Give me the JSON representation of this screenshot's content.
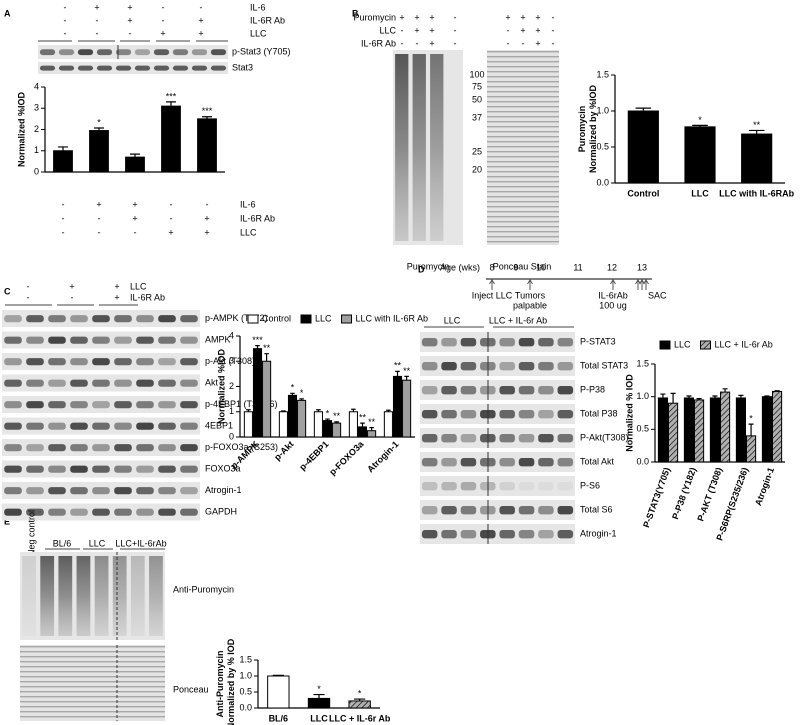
{
  "chart_data": [
    {
      "type": "bar",
      "y_label": "Normalized %IOD",
      "ylim": [
        0,
        4
      ],
      "yticks": [
        0,
        1,
        2,
        3,
        4
      ],
      "series": [
        {
          "color": "#000000",
          "values": [
            1.0,
            1.95,
            0.7,
            3.1,
            2.5
          ],
          "errors": [
            0.18,
            0.12,
            0.14,
            0.2,
            0.1
          ],
          "significance": [
            null,
            "*",
            null,
            "***",
            "***"
          ]
        }
      ]
    },
    {
      "type": "bar",
      "y_label": [
        "Puromycin",
        "Normalized by %IOD"
      ],
      "categories": [
        "Control",
        "LLC",
        "LLC with IL-6RAb"
      ],
      "ylim": [
        0,
        1.5
      ],
      "yticks": [
        {
          "value": 0,
          "label": "0.0"
        },
        0.5,
        {
          "value": 1,
          "label": "1.0"
        },
        1.5
      ],
      "series": [
        {
          "color": "#000000",
          "values": [
            1.0,
            0.78,
            0.68
          ],
          "errors": [
            0.04,
            0.02,
            0.05
          ],
          "significance": [
            null,
            "*",
            "**"
          ]
        }
      ]
    },
    {
      "type": "bar",
      "y_label": "Normalized %IOD",
      "categories": [
        "p-AMPK",
        "p-Akt",
        "p-4EBP1",
        "p-FOXO3a",
        "Atrogin-1"
      ],
      "ylim": [
        0,
        4
      ],
      "yticks": [
        0,
        1,
        2,
        3,
        4
      ],
      "series": [
        {
          "name": "Control",
          "color": "#ffffff",
          "values": [
            1.0,
            1.0,
            1.0,
            1.0,
            1.0
          ],
          "errors": [
            0.08,
            0.03,
            0.08,
            0.1,
            0.06
          ],
          "significance": [
            null,
            null,
            null,
            null,
            null
          ]
        },
        {
          "name": "LLC",
          "color": "#000000",
          "values": [
            3.5,
            1.65,
            0.65,
            0.4,
            2.4
          ],
          "errors": [
            0.12,
            0.08,
            0.06,
            0.15,
            0.2
          ],
          "significance": [
            "***",
            "*",
            "*",
            "**",
            "**"
          ]
        },
        {
          "name": "LLC with IL-6R Ab",
          "color": "#a0a0a0",
          "values": [
            3.0,
            1.45,
            0.55,
            0.25,
            2.25
          ],
          "errors": [
            0.3,
            0.06,
            0.05,
            0.12,
            0.15
          ],
          "significance": [
            "**",
            "*",
            "**",
            "**",
            "**"
          ]
        }
      ]
    },
    {
      "type": "bar",
      "y_label": "Normalized % IOD",
      "categories": [
        "P-STAT3(Y705)",
        "P-P38 (Y182)",
        "P-AKT (T308)",
        "P-S6RP(S235/236)",
        "Atrogin-1"
      ],
      "ylim": [
        0,
        1.5
      ],
      "yticks": [
        {
          "value": 0,
          "label": "0.0"
        },
        0.5,
        {
          "value": 1,
          "label": "1.0"
        },
        1.5
      ],
      "series": [
        {
          "name": "LLC",
          "color": "#000000",
          "values": [
            0.98,
            0.98,
            0.98,
            0.98,
            1.0
          ],
          "errors": [
            0.06,
            0.03,
            0.03,
            0.04,
            0.01
          ],
          "significance": [
            null,
            null,
            null,
            null,
            null
          ]
        },
        {
          "name": "LLC + IL-6r Ab",
          "color": "#b0b0b0",
          "hatched": true,
          "values": [
            0.9,
            0.95,
            1.07,
            0.4,
            1.08
          ],
          "errors": [
            0.15,
            0.02,
            0.05,
            0.18,
            0.01
          ],
          "significance": [
            null,
            null,
            null,
            "*",
            null
          ]
        }
      ]
    },
    {
      "type": "bar",
      "y_label": [
        "Anti-Puromycin",
        "Normalized by % IOD"
      ],
      "categories": [
        "BL/6",
        "LLC",
        "LLC + IL-6r Ab"
      ],
      "ylim": [
        0,
        1.5
      ],
      "yticks": [
        {
          "value": 0,
          "label": "0.0"
        },
        0.5,
        {
          "value": 1,
          "label": "1.0"
        },
        1.5
      ],
      "series": [
        {
          "colors": [
            "#ffffff",
            "#000000",
            "#b0b0b0"
          ],
          "hatched": [
            false,
            false,
            true
          ],
          "values": [
            1.0,
            0.3,
            0.22
          ],
          "errors": [
            0.02,
            0.12,
            0.06
          ],
          "significance": [
            null,
            "*",
            "*"
          ]
        }
      ]
    }
  ],
  "panels": {
    "labels": [
      "A",
      "B",
      "C",
      "D",
      "E"
    ],
    "A": {
      "treatments": [
        {
          "name": "IL-6",
          "signs": [
            "-",
            "+",
            "+",
            "-",
            "-"
          ]
        },
        {
          "name": "IL-6R Ab",
          "signs": [
            "-",
            "-",
            "+",
            "-",
            "+"
          ]
        },
        {
          "name": "LLC",
          "signs": [
            "-",
            "-",
            "-",
            "+",
            "+"
          ]
        }
      ],
      "blots": [
        "p-Stat3 (Y705)",
        "Stat3"
      ]
    },
    "B": {
      "treatments": [
        {
          "name": "Puromycin",
          "signs": [
            "+",
            "+",
            "+",
            "-"
          ]
        },
        {
          "name": "LLC",
          "signs": [
            "-",
            "+",
            "+",
            "-"
          ]
        },
        {
          "name": "IL-6R Ab",
          "signs": [
            "-",
            "-",
            "+",
            "-"
          ]
        }
      ],
      "markers": [
        100,
        75,
        50,
        37,
        25,
        20
      ],
      "captions": [
        "Puromycin",
        "Ponceau Stain"
      ]
    },
    "C": {
      "treatments": [
        {
          "name": "LLC",
          "signs": [
            "-",
            "+",
            "+"
          ]
        },
        {
          "name": "IL-6R Ab",
          "signs": [
            "-",
            "-",
            "+"
          ]
        }
      ],
      "blots": [
        "p-AMPK (T172)",
        "AMPK",
        "p-Akt (T308)",
        "Akt",
        "p-4EBP1 (T37/46)",
        "4EBP1",
        "p-FOXO3a (S253)",
        "FOXO3a",
        "Atrogin-1",
        "GAPDH"
      ]
    },
    "D": {
      "timeline": {
        "label": "Age (wks)",
        "weeks": [
          8,
          9,
          10,
          11,
          12,
          13
        ],
        "events": [
          [
            "Inject LLC"
          ],
          [
            "Tumors",
            "palpable"
          ],
          [
            "IL-6rAb",
            "100 ug"
          ],
          [
            "SAC"
          ]
        ]
      },
      "groups": [
        "LLC",
        "LLC + IL-6r Ab"
      ],
      "blots": [
        "P-STAT3",
        "Total STAT3",
        "P-P38",
        "Total P38",
        "P-Akt(T308)",
        "Total Akt",
        "P-S6",
        "Total S6",
        "Atrogin-1"
      ]
    },
    "E": {
      "neg_control": "Neg control",
      "groups": [
        "BL/6",
        "LLC",
        "LLC+IL-6rAb"
      ],
      "blots": [
        "Anti-Puromycin",
        "Ponceau"
      ]
    }
  }
}
